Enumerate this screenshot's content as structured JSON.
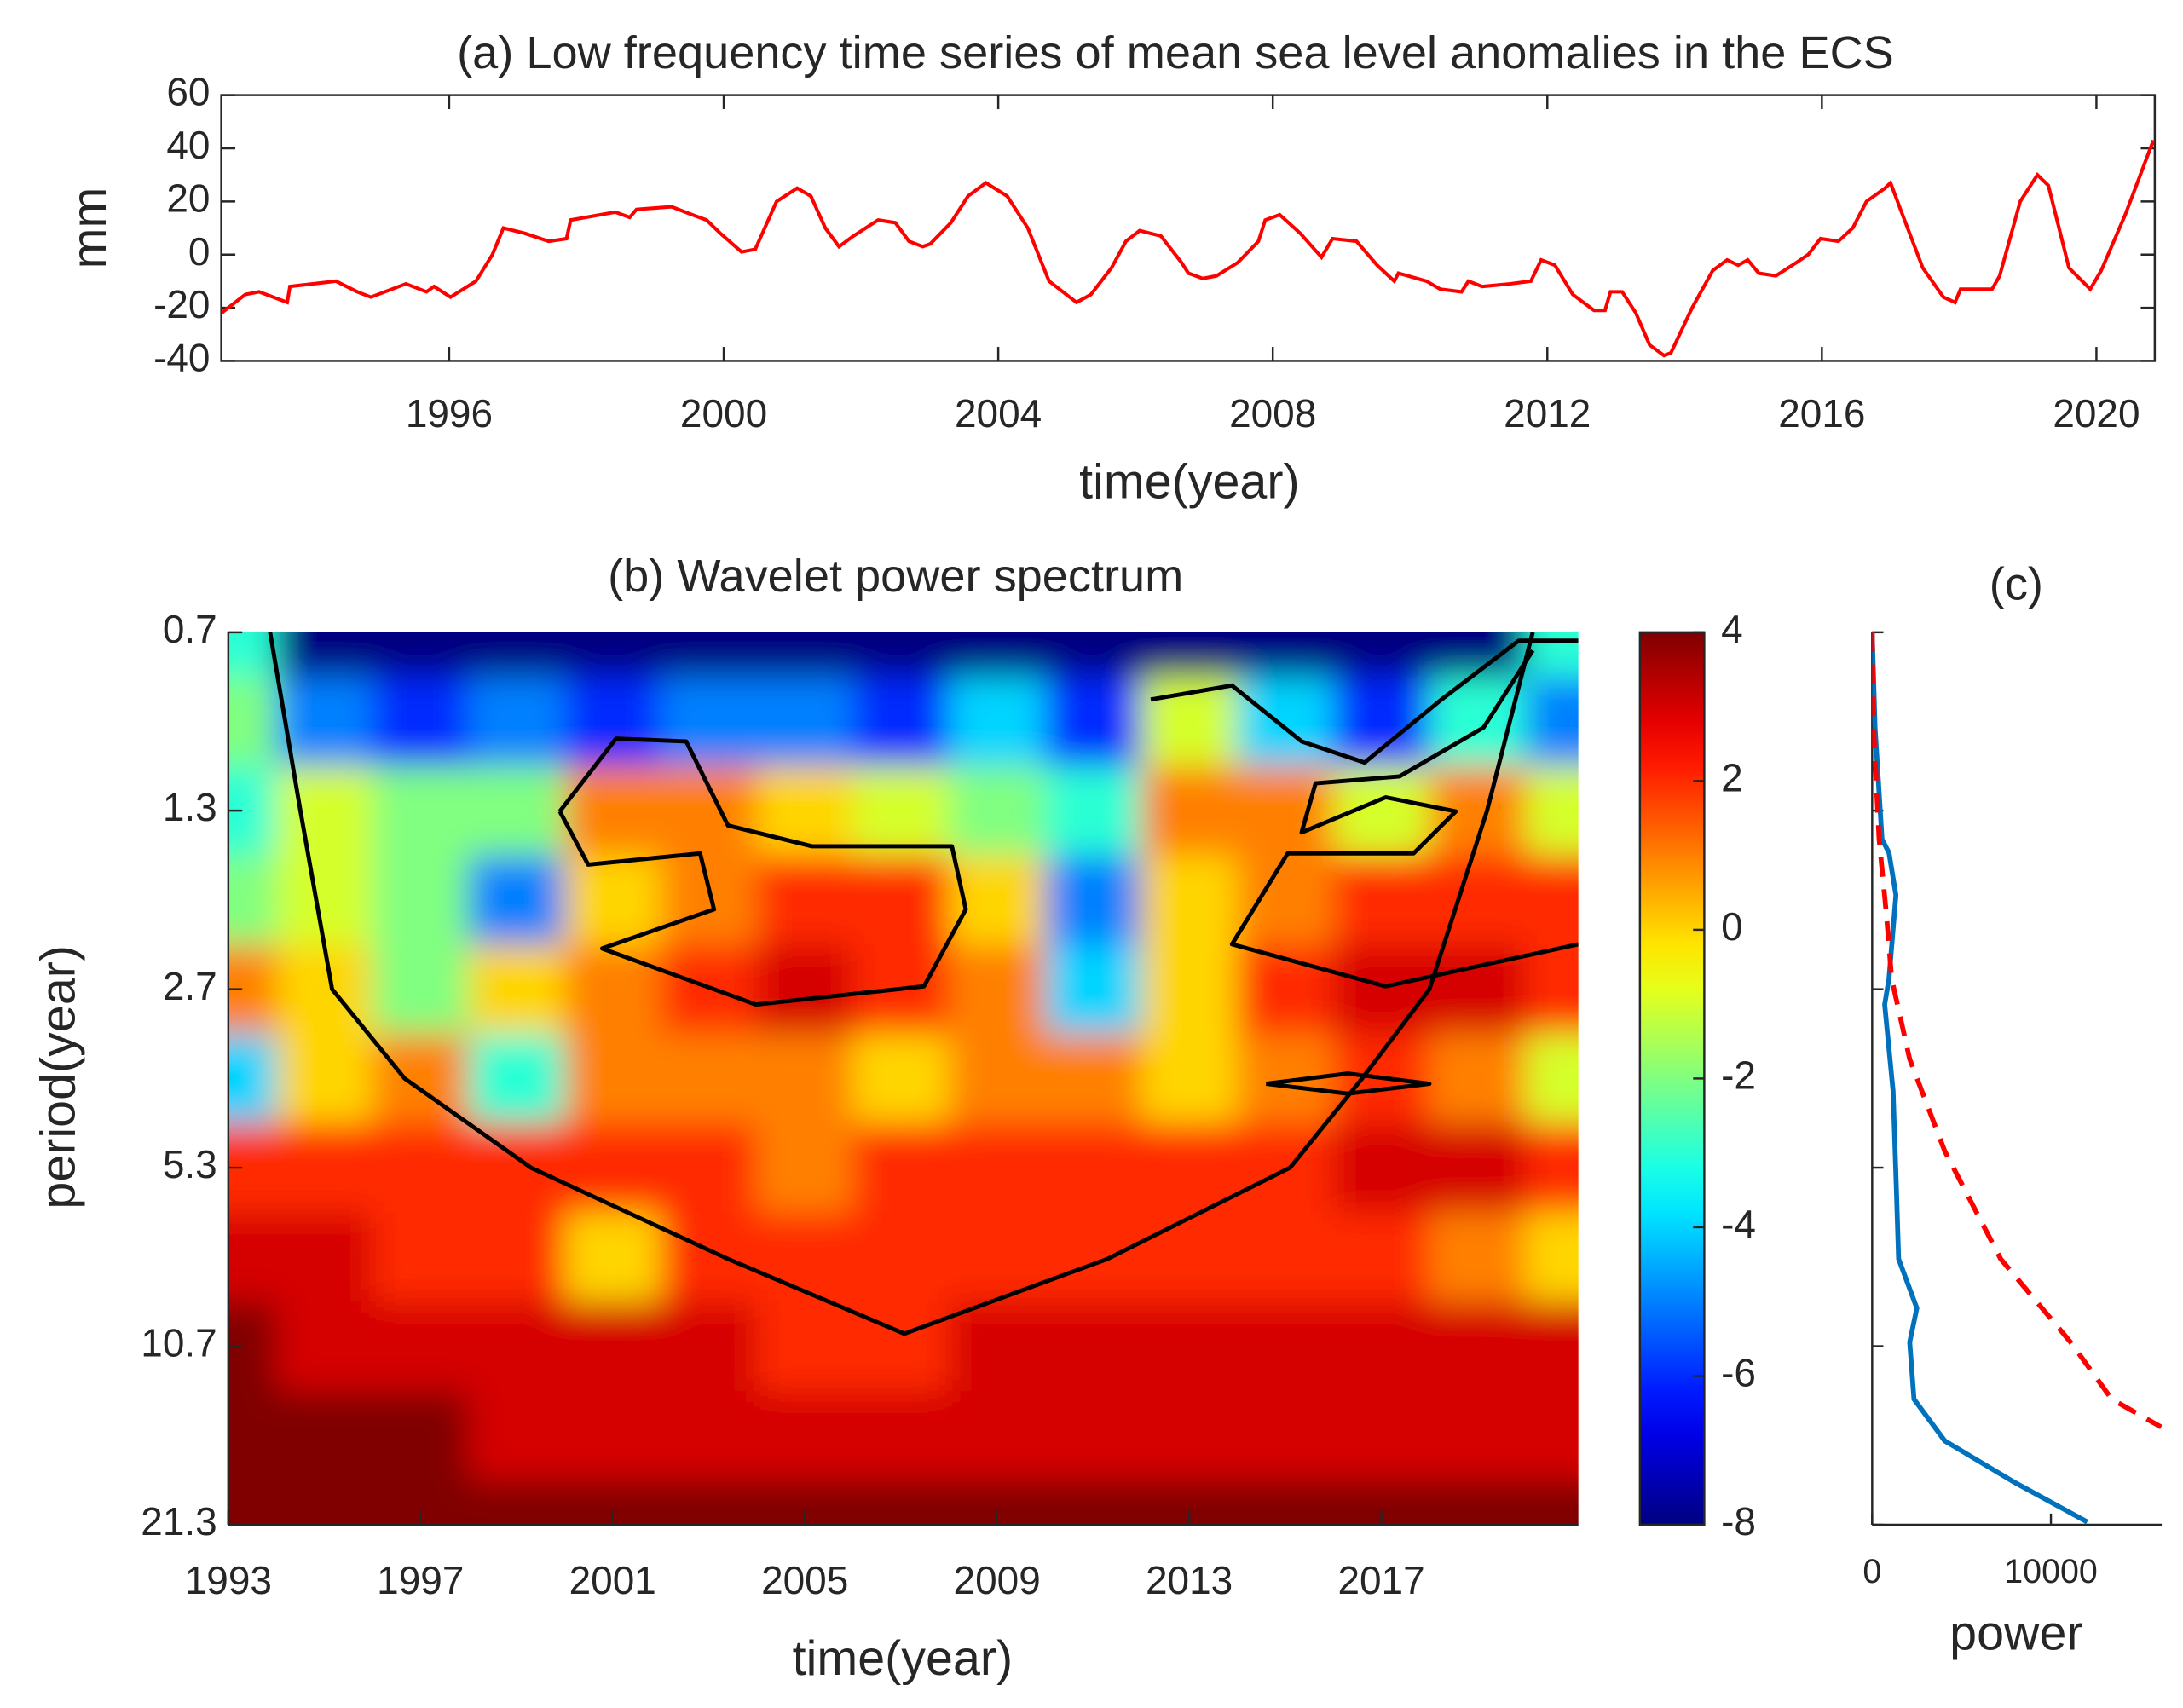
{
  "chart_data": [
    {
      "type": "line",
      "title": "(a) Low frequency time series of mean sea level anomalies in the ECS",
      "xlabel": "time(year)",
      "ylabel": "mm",
      "xlim": [
        1992.68,
        2020.85
      ],
      "ylim": [
        -40,
        60
      ],
      "xticks": [
        1996,
        2000,
        2004,
        2008,
        2012,
        2016,
        2020
      ],
      "yticks": [
        -40,
        -20,
        0,
        20,
        40,
        60
      ],
      "series": [
        {
          "color": "#ff0000",
          "x": [
            1992.68,
            1993.03,
            1993.23,
            1993.64,
            1993.68,
            1994.35,
            1994.66,
            1994.86,
            1995.37,
            1995.67,
            1995.78,
            1996.02,
            1996.39,
            1996.63,
            1996.79,
            1997.1,
            1997.45,
            1997.71,
            1997.77,
            1998.42,
            1998.63,
            1998.73,
            1999.24,
            1999.54,
            1999.75,
            1999.95,
            2000.26,
            2000.46,
            2000.77,
            2001.07,
            2001.27,
            2001.48,
            2001.68,
            2001.89,
            2002.25,
            2002.5,
            2002.7,
            2002.9,
            2003.01,
            2003.31,
            2003.56,
            2003.82,
            2004.13,
            2004.43,
            2004.74,
            2005.14,
            2005.35,
            2005.65,
            2005.86,
            2006.06,
            2006.37,
            2006.67,
            2006.77,
            2006.98,
            2007.18,
            2007.49,
            2007.79,
            2007.89,
            2008.1,
            2008.4,
            2008.71,
            2008.87,
            2009.22,
            2009.52,
            2009.77,
            2009.83,
            2010.24,
            2010.44,
            2010.75,
            2010.85,
            2011.05,
            2011.46,
            2011.76,
            2011.91,
            2012.11,
            2012.37,
            2012.68,
            2012.84,
            2012.92,
            2013.09,
            2013.29,
            2013.49,
            2013.7,
            2013.8,
            2014.11,
            2014.41,
            2014.62,
            2014.78,
            2014.92,
            2015.08,
            2015.33,
            2015.63,
            2015.8,
            2015.98,
            2016.24,
            2016.45,
            2016.65,
            2016.92,
            2017.0,
            2017.16,
            2017.47,
            2017.77,
            2017.94,
            2018.02,
            2018.48,
            2018.59,
            2018.89,
            2019.14,
            2019.3,
            2019.6,
            2019.91,
            2020.07,
            2020.42,
            2020.83
          ],
          "values": [
            -22,
            -15,
            -14,
            -18,
            -12,
            -10,
            -14,
            -16,
            -11,
            -14,
            -12,
            -16,
            -10,
            0,
            10,
            8,
            5,
            6,
            13,
            16,
            14,
            17,
            18,
            15,
            13,
            8,
            1,
            2,
            20,
            25,
            22,
            10,
            3,
            7,
            13,
            12,
            5,
            3,
            4,
            12,
            22,
            27,
            22,
            10,
            -10,
            -18,
            -15,
            -5,
            5,
            9,
            7,
            -3,
            -7,
            -9,
            -8,
            -3,
            5,
            13,
            15,
            8,
            -1,
            6,
            5,
            -4,
            -10,
            -7,
            -10,
            -13,
            -14,
            -10,
            -12,
            -11,
            -10,
            -2,
            -4,
            -15,
            -21,
            -21,
            -14,
            -14,
            -22,
            -34,
            -38,
            -37,
            -20,
            -6,
            -2,
            -4,
            -2,
            -7,
            -8,
            -3,
            0,
            6,
            5,
            10,
            20,
            25,
            27,
            16,
            -5,
            -16,
            -18,
            -13,
            -13,
            -8,
            20,
            30,
            26,
            -5,
            -13,
            -6,
            15,
            43
          ]
        }
      ]
    },
    {
      "type": "contour",
      "title": "(b) Wavelet power spectrum",
      "xlabel": "time(year)",
      "ylabel": "period(year)",
      "xlim": [
        1993,
        2021.1
      ],
      "ylim": [
        0.667,
        21.333
      ],
      "ylog": true,
      "yreverse": true,
      "xticks": [
        1993,
        1997,
        2001,
        2005,
        2009,
        2013,
        2017
      ],
      "yticks": [
        {
          "value": 0.667,
          "label": "0.7"
        },
        {
          "value": 1.333,
          "label": "1.3"
        },
        {
          "value": 2.667,
          "label": "2.7"
        },
        {
          "value": 5.333,
          "label": "5.3"
        },
        {
          "value": 10.667,
          "label": "10.7"
        },
        {
          "value": 21.333,
          "label": "21.3"
        }
      ],
      "colormap": "jet",
      "clim": [
        -8,
        4
      ],
      "cticks": [
        -8,
        -6,
        -4,
        -2,
        0,
        2,
        4
      ],
      "x": [
        1993,
        1995,
        1997,
        1999,
        2001,
        2003,
        2005,
        2007,
        2009,
        2011,
        2013,
        2015,
        2017,
        2019,
        2021
      ],
      "y": [
        0.667,
        0.943,
        1.333,
        1.886,
        2.667,
        3.771,
        5.333,
        7.542,
        10.667,
        15.085,
        21.333
      ],
      "z": [
        [
          -3,
          -8,
          -8,
          -8,
          -8,
          -8,
          -8,
          -8,
          -8,
          -8,
          -8,
          -8,
          -8,
          -8,
          -3
        ],
        [
          -2,
          -5,
          -6,
          -5,
          -6,
          -5,
          -5,
          -6,
          -4,
          -6,
          -1,
          -4,
          -6,
          -3,
          -5
        ],
        [
          -3,
          -1,
          -2,
          -2,
          1,
          1,
          0,
          -1,
          -2,
          -3,
          1,
          1,
          -1,
          1,
          -1
        ],
        [
          -2,
          -1,
          -2,
          -5,
          0,
          1,
          2,
          2,
          0,
          -5,
          0,
          1,
          2,
          2,
          2
        ],
        [
          1,
          0,
          -2,
          0,
          1,
          2,
          3,
          2,
          1,
          -4,
          0,
          2,
          3,
          3,
          2
        ],
        [
          -4,
          0,
          1,
          -3,
          1,
          1,
          1,
          0,
          1,
          1,
          0,
          1,
          2,
          1,
          -1
        ],
        [
          2,
          2,
          2,
          2,
          2,
          2,
          1,
          2,
          2,
          2,
          2,
          2,
          3,
          3,
          2
        ],
        [
          3,
          3,
          2,
          2,
          0,
          2,
          2,
          2,
          2,
          2,
          2,
          2,
          2,
          1,
          0
        ],
        [
          4,
          3,
          3,
          3,
          3,
          3,
          2,
          2,
          3,
          3,
          3,
          3,
          3,
          3,
          3
        ],
        [
          4,
          4,
          4,
          3,
          3,
          3,
          3,
          3,
          3,
          3,
          3,
          3,
          3,
          3,
          3
        ],
        [
          4,
          4,
          4,
          4,
          4,
          4,
          4,
          4,
          4,
          4,
          4,
          4,
          4,
          4,
          4
        ]
      ],
      "cone": {
        "color": "#000000",
        "x": [
          1993.87,
          1994.5,
          1995.16,
          1996.67,
          1999.3,
          2003.4,
          2007.07,
          2011.3,
          2015.1,
          2016.6,
          2018.0,
          2019.2,
          2020.15
        ],
        "y": [
          0.667,
          1.333,
          2.667,
          3.771,
          5.333,
          7.6,
          10.16,
          7.6,
          5.333,
          3.771,
          2.667,
          1.333,
          0.667
        ]
      },
      "contours": [
        {
          "x": [
            1999.9,
            2001.07,
            2002.53,
            2003.4,
            2005.15,
            2008.06,
            2008.35,
            2007.48,
            2003.98,
            2000.78,
            2003.11,
            2002.82,
            2000.49,
            1999.9
          ],
          "y": [
            1.337,
            1.008,
            1.019,
            1.412,
            1.531,
            1.531,
            1.956,
            2.637,
            2.83,
            2.277,
            1.956,
            1.574,
            1.644,
            1.337
          ]
        },
        {
          "x": [
            2012.2,
            2013.89,
            2015.34,
            2016.65,
            2018.25,
            2019.86,
            2021.1
          ],
          "y": [
            0.866,
            0.82,
            1.019,
            1.106,
            0.866,
            0.689,
            0.689
          ]
        },
        {
          "x": [
            2020.15,
            2019.13,
            2017.38,
            2015.63,
            2015.34,
            2017.09,
            2018.55,
            2017.67,
            2015.05,
            2013.89,
            2017.09,
            2021.1
          ],
          "y": [
            0.716,
            0.965,
            1.167,
            1.199,
            1.451,
            1.266,
            1.337,
            1.574,
            1.574,
            2.24,
            2.637,
            2.24
          ]
        },
        {
          "x": [
            2014.6,
            2016.3,
            2018.0,
            2016.3,
            2014.6
          ],
          "y": [
            3.85,
            3.7,
            3.85,
            4.0,
            3.85
          ]
        }
      ]
    },
    {
      "type": "line",
      "title": "(c)",
      "xlabel": "power",
      "xlim": [
        0,
        16200
      ],
      "ylim": [
        0.667,
        21.333
      ],
      "ylog": true,
      "yreverse": true,
      "xticks": [
        0,
        10000
      ],
      "series": [
        {
          "color": "#0072bd",
          "dash": false,
          "x": [
            0,
            160,
            550,
            940,
            1330,
            940,
            700,
            1170,
            1330,
            1480,
            2500,
            2100,
            2340,
            4060,
            7970,
            12030
          ],
          "y": [
            0.667,
            0.965,
            1.49,
            1.57,
            1.85,
            2.56,
            2.83,
            3.96,
            5.49,
            7.6,
            9.2,
            10.5,
            13.1,
            15.4,
            18.1,
            21.1
          ]
        },
        {
          "color": "#ff0000",
          "dash": true,
          "x": [
            0,
            100,
            390,
            800,
            1090,
            2100,
            4060,
            7190,
            11100,
            13400,
            16170
          ],
          "y": [
            0.667,
            1.0,
            1.49,
            2.0,
            2.56,
            3.5,
            5.0,
            7.6,
            10.5,
            13.1,
            14.6
          ]
        }
      ]
    }
  ]
}
